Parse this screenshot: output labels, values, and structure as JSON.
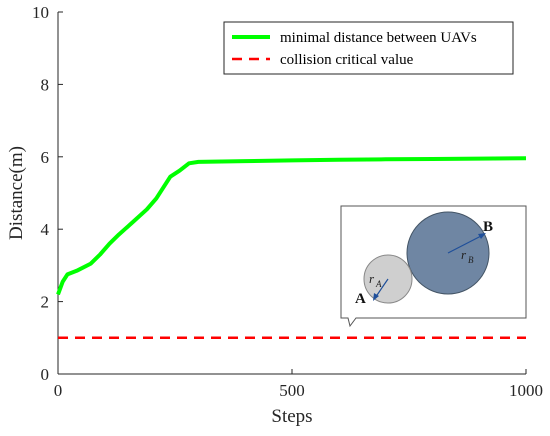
{
  "chart_data": {
    "type": "line",
    "title": "",
    "xlabel": "Steps",
    "ylabel": "Distance(m)",
    "xlim": [
      0,
      1000
    ],
    "ylim": [
      0,
      10
    ],
    "xticks": [
      0,
      500,
      1000
    ],
    "yticks": [
      0,
      2,
      4,
      6,
      8,
      10
    ],
    "grid": false,
    "legend_position": "top-right",
    "series": [
      {
        "name": "minimal distance between UAVs",
        "color": "#00ff00",
        "style": "solid",
        "x": [
          0,
          10,
          20,
          40,
          70,
          90,
          110,
          130,
          160,
          190,
          210,
          240,
          260,
          280,
          300,
          400,
          500,
          600,
          700,
          800,
          900,
          1000
        ],
        "y": [
          2.2,
          2.55,
          2.75,
          2.85,
          3.05,
          3.3,
          3.6,
          3.85,
          4.2,
          4.55,
          4.85,
          5.45,
          5.62,
          5.82,
          5.86,
          5.88,
          5.9,
          5.92,
          5.93,
          5.94,
          5.95,
          5.96
        ]
      },
      {
        "name": "collision critical value",
        "color": "#ff0000",
        "style": "dashed",
        "x": [
          0,
          1000
        ],
        "y": [
          1,
          1
        ]
      }
    ],
    "inset": {
      "label_a": "A",
      "label_b": "B",
      "radius_a_symbol": "r",
      "radius_a_sub": "A",
      "radius_b_symbol": "r",
      "radius_b_sub": "B",
      "circle_a_color": "#cfcfcf",
      "circle_b_color": "#6f86a3"
    }
  }
}
